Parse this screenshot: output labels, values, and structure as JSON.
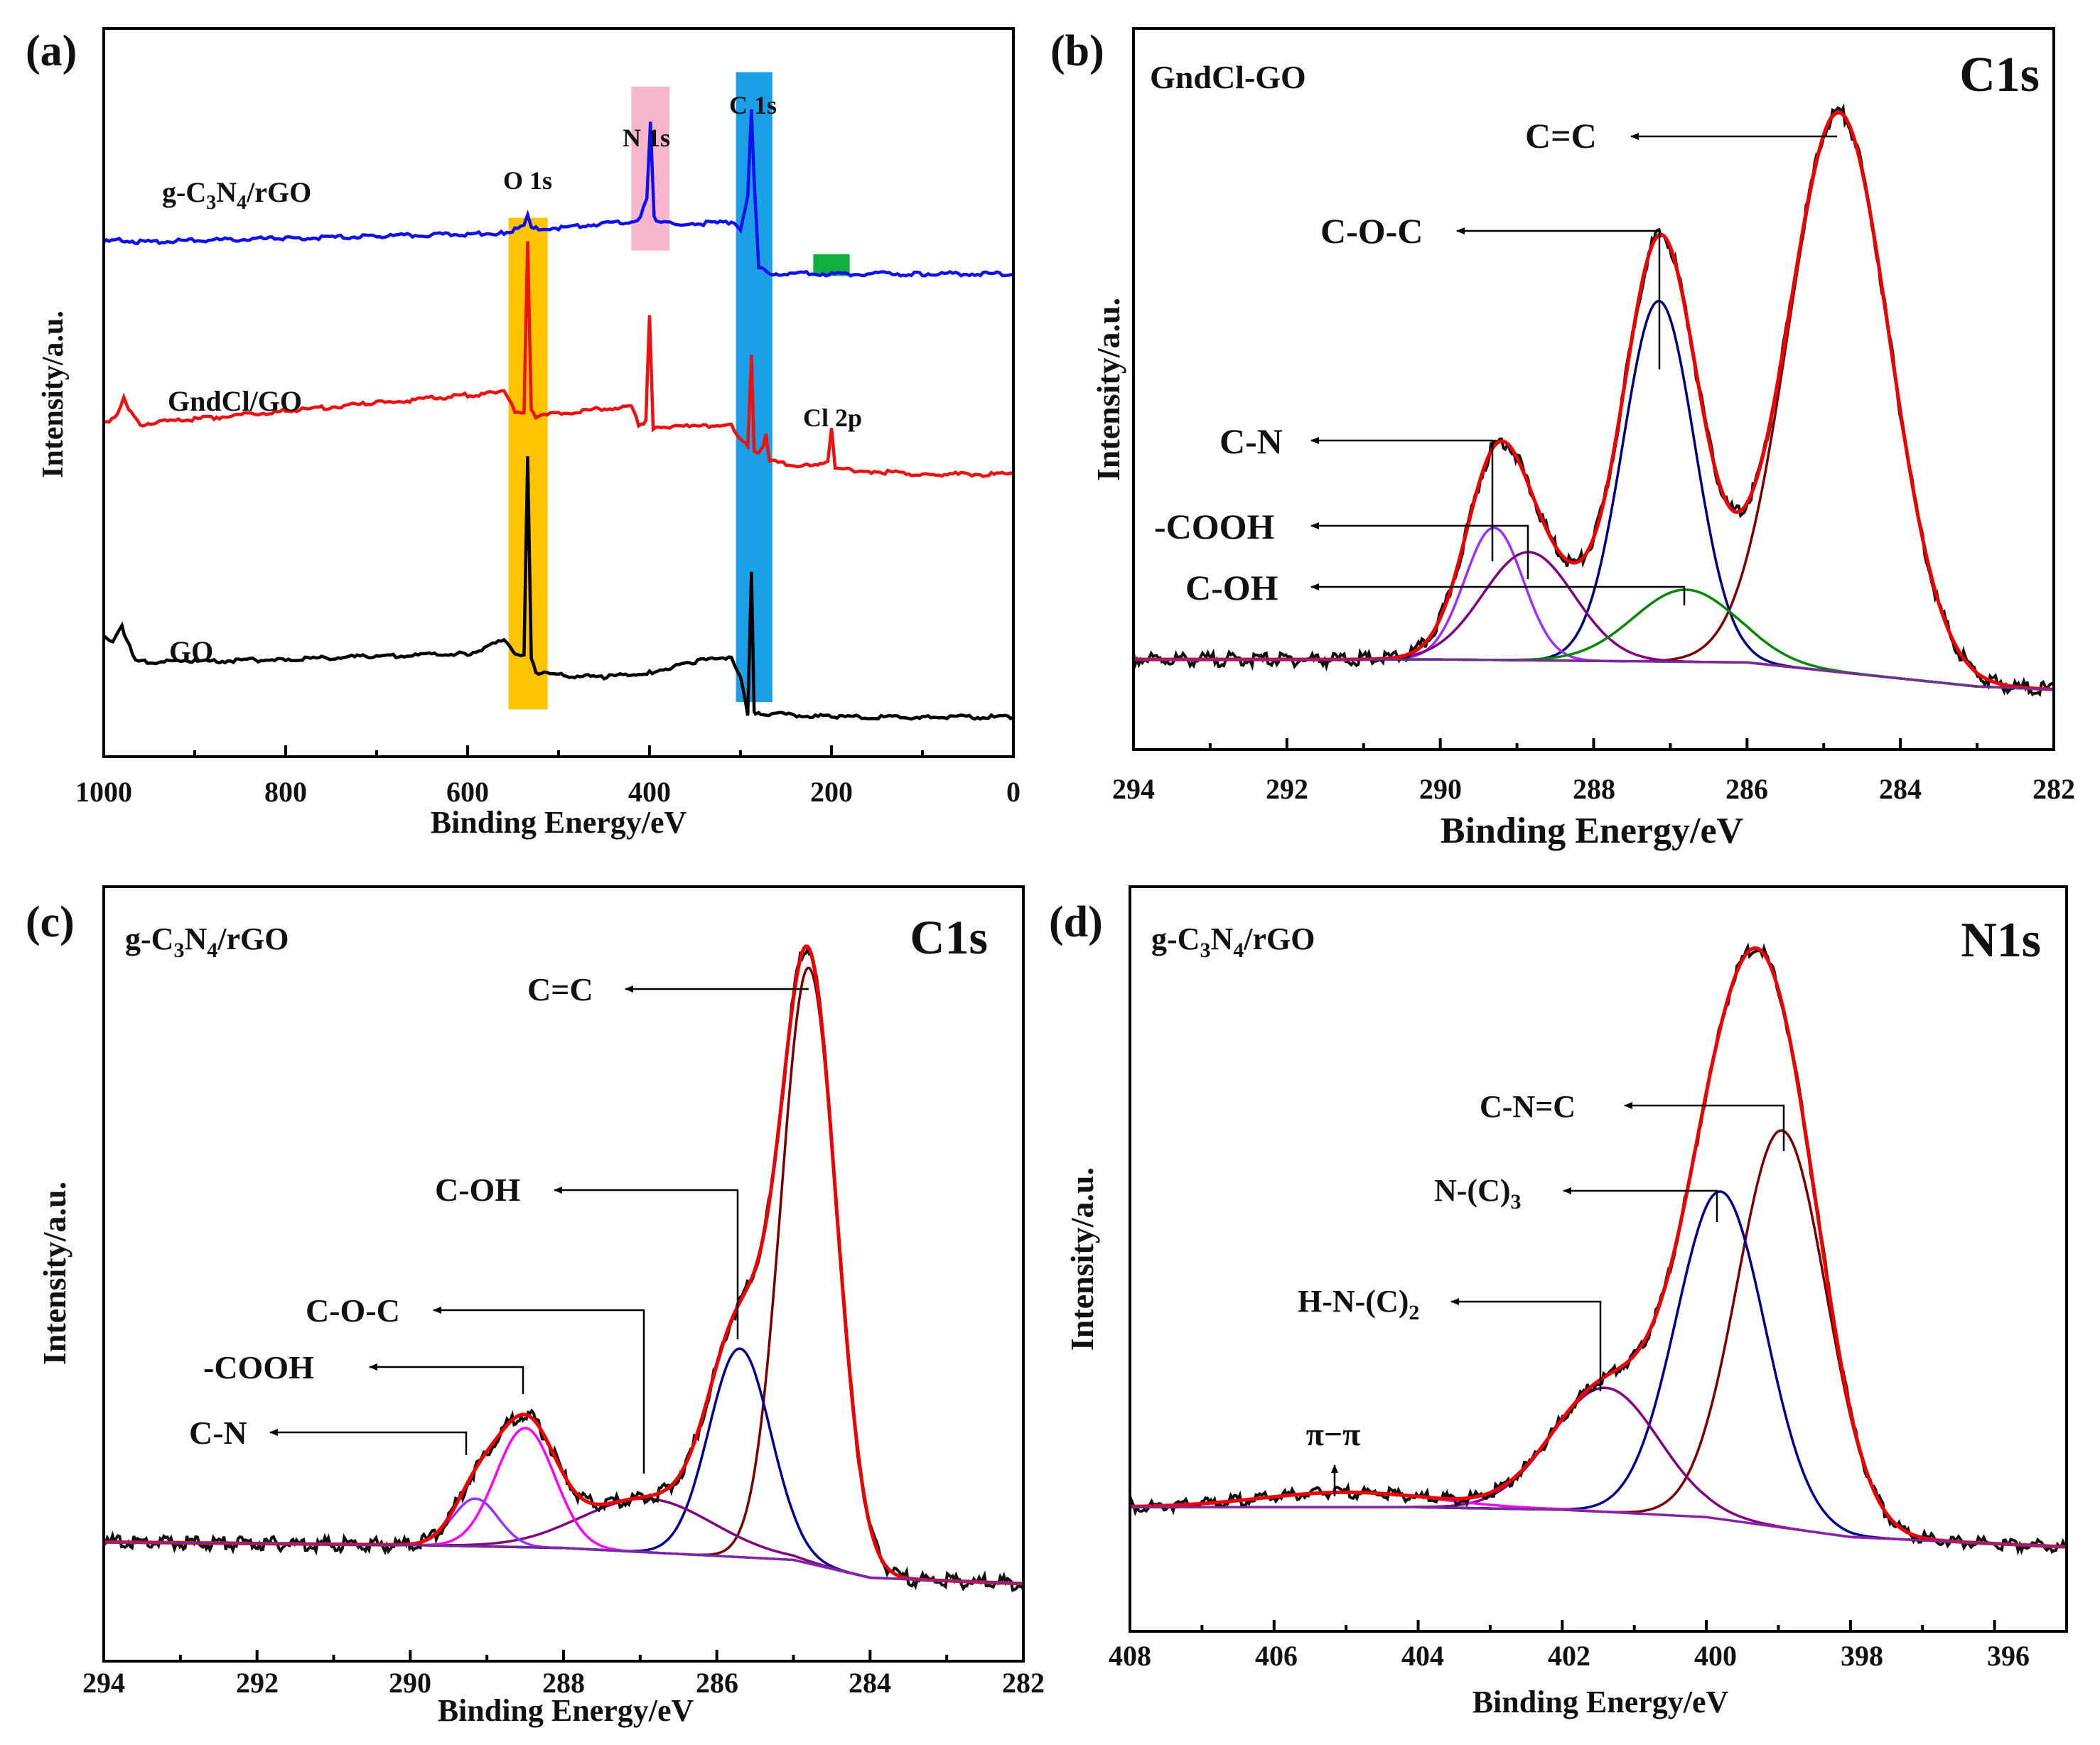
{
  "chart_data": [
    {
      "panel": "(a)",
      "type": "line",
      "xlabel": "Binding Energy/eV",
      "ylabel": "Intensity/a.u.",
      "xlim": [
        1000,
        0
      ],
      "x_ticks": [
        1000,
        800,
        600,
        400,
        200,
        0
      ],
      "series": [
        {
          "name": "g-C3N4/rGO",
          "color": "#1010ee",
          "x": [
            1000,
            980,
            960,
            900,
            800,
            700,
            600,
            560,
            545,
            538,
            534,
            530,
            525,
            500,
            420,
            410,
            403,
            399,
            395,
            390,
            350,
            310,
            300,
            292,
            288,
            285,
            280,
            270,
            200,
            100,
            0
          ],
          "y": [
            8.45,
            8.5,
            8.45,
            8.48,
            8.52,
            8.56,
            8.6,
            8.62,
            8.7,
            8.8,
            8.95,
            8.75,
            8.7,
            8.72,
            8.85,
            8.9,
            9.3,
            10.7,
            8.95,
            8.82,
            8.8,
            8.82,
            8.7,
            9.3,
            11.0,
            9.6,
            8.0,
            7.86,
            7.85,
            7.85,
            7.85
          ]
        },
        {
          "name": "GndCl/GO",
          "color": "#ee1111",
          "x": [
            1000,
            985,
            978,
            970,
            960,
            900,
            800,
            700,
            600,
            560,
            548,
            538,
            534,
            530,
            525,
            500,
            420,
            412,
            404,
            400,
            396,
            390,
            350,
            310,
            300,
            292,
            288,
            285,
            280,
            275,
            272,
            268,
            250,
            215,
            204,
            200,
            196,
            190,
            150,
            100,
            0
          ],
          "y": [
            5.0,
            5.2,
            5.5,
            5.2,
            5.0,
            5.1,
            5.25,
            5.4,
            5.55,
            5.6,
            5.25,
            5.2,
            8.5,
            5.25,
            5.15,
            5.2,
            5.35,
            5.0,
            5.05,
            7.1,
            4.9,
            4.95,
            4.95,
            5.0,
            4.7,
            4.6,
            6.3,
            4.5,
            4.45,
            4.6,
            4.8,
            4.3,
            4.25,
            4.2,
            4.3,
            4.9,
            4.2,
            4.15,
            4.1,
            4.05,
            4.05
          ]
        },
        {
          "name": "GO",
          "color": "#000000",
          "x": [
            1000,
            990,
            980,
            975,
            965,
            955,
            900,
            800,
            700,
            600,
            560,
            548,
            538,
            534,
            530,
            525,
            500,
            450,
            400,
            350,
            310,
            300,
            292,
            288,
            285,
            282,
            278,
            250,
            200,
            100,
            0
          ],
          "y": [
            1.0,
            0.85,
            1.2,
            0.9,
            0.55,
            0.5,
            0.5,
            0.55,
            0.6,
            0.65,
            0.9,
            0.65,
            0.6,
            4.4,
            0.55,
            0.3,
            0.25,
            0.2,
            0.3,
            0.5,
            0.6,
            0.2,
            -0.5,
            2.2,
            -0.45,
            -0.5,
            -0.5,
            -0.5,
            -0.55,
            -0.55,
            -0.55
          ]
        }
      ],
      "labels": [
        "g-C3N4/rGO",
        "GndCl/GO",
        "GO"
      ],
      "bands": [
        {
          "label": "O 1s",
          "from": 555,
          "to": 512,
          "color": "#ffc400"
        },
        {
          "label": "N 1s",
          "from": 420,
          "to": 378,
          "color": "#f7b6cc"
        },
        {
          "label": "C 1s",
          "from": 305,
          "to": 265,
          "color": "#1aa0e6"
        },
        {
          "label": "Cl 2p",
          "from": 220,
          "to": 180,
          "color": "#10b040"
        }
      ],
      "ylim": [
        -1.3,
        12.5
      ]
    },
    {
      "panel": "(b)",
      "type": "line",
      "sample": "GndCl-GO",
      "region": "C1s",
      "xlabel": "Binding Energy/eV",
      "ylabel": "Intensity/a.u.",
      "xlim": [
        294,
        282
      ],
      "x_ticks": [
        294,
        292,
        290,
        288,
        286,
        284,
        282
      ],
      "ylim": [
        -0.1,
        1.1
      ],
      "baseline": {
        "x": [
          294,
          290,
          286,
          283,
          282
        ],
        "y": [
          0.05,
          0.05,
          0.045,
          0.005,
          0.0
        ]
      },
      "peaks": [
        {
          "name": "C=C",
          "center": 284.8,
          "height": 0.93,
          "fwhm": 1.55,
          "color": "#7a0000"
        },
        {
          "name": "C-O-C",
          "center": 287.15,
          "height": 0.6,
          "fwhm": 1.1,
          "color": "#00007a"
        },
        {
          "name": "C-N",
          "center": 289.3,
          "height": 0.22,
          "fwhm": 0.9,
          "color": "#9b30ff"
        },
        {
          "name": "-COOH",
          "center": 288.85,
          "height": 0.18,
          "fwhm": 1.4,
          "color": "#800080"
        },
        {
          "name": "C-OH",
          "center": 286.8,
          "height": 0.12,
          "fwhm": 1.6,
          "color": "#008800"
        }
      ],
      "annotations": [
        "C=C",
        "C-O-C",
        "C-N",
        "-COOH",
        "C-OH"
      ]
    },
    {
      "panel": "(c)",
      "type": "line",
      "sample": "g-C3N4/rGO",
      "region": "C1s",
      "xlabel": "Binding Energy/eV",
      "ylabel": "Intensity/a.u.",
      "xlim": [
        294,
        282
      ],
      "x_ticks": [
        294,
        292,
        290,
        288,
        286,
        284,
        282
      ],
      "ylim": [
        -0.2,
        1.1
      ],
      "baseline": {
        "x": [
          294,
          290,
          288,
          285,
          284,
          282
        ],
        "y": [
          0.0,
          -0.005,
          -0.01,
          -0.03,
          -0.06,
          -0.07
        ]
      },
      "peaks": [
        {
          "name": "C=C",
          "center": 284.8,
          "height": 1.0,
          "fwhm": 0.85,
          "color": "#7a0000"
        },
        {
          "name": "C-OH",
          "center": 285.7,
          "height": 0.35,
          "fwhm": 0.95,
          "color": "#000090"
        },
        {
          "name": "C-O-C",
          "center": 286.9,
          "height": 0.09,
          "fwhm": 2.0,
          "color": "#800080"
        },
        {
          "name": "-COOH",
          "center": 288.5,
          "height": 0.2,
          "fwhm": 0.9,
          "color": "#ff00ff"
        },
        {
          "name": "C-N",
          "center": 289.15,
          "height": 0.08,
          "fwhm": 0.7,
          "color": "#9b30ff"
        }
      ],
      "annotations": [
        "C=C",
        "C-OH",
        "C-O-C",
        "-COOH",
        "C-N"
      ]
    },
    {
      "panel": "(d)",
      "type": "line",
      "sample": "g-C3N4/rGO",
      "region": "N1s",
      "xlabel": "Binding Energy/eV",
      "ylabel": "Intensity/a.u.",
      "xlim": [
        408,
        395
      ],
      "x_ticks": [
        408,
        406,
        404,
        402,
        400,
        398,
        396
      ],
      "ylim": [
        -0.25,
        1.25
      ],
      "baseline": {
        "x": [
          408,
          404,
          402,
          400,
          399,
          398,
          395
        ],
        "y": [
          0.0,
          0.0,
          -0.005,
          -0.02,
          -0.04,
          -0.06,
          -0.08
        ]
      },
      "peaks": [
        {
          "name": "C-N=C",
          "center": 398.95,
          "height": 0.8,
          "fwhm": 1.45,
          "color": "#7a0000"
        },
        {
          "name": "N-(C)3",
          "center": 399.8,
          "height": 0.66,
          "fwhm": 1.45,
          "color": "#000090"
        },
        {
          "name": "H-N-(C)2",
          "center": 401.4,
          "height": 0.25,
          "fwhm": 1.75,
          "color": "#800080"
        },
        {
          "name": "π−π",
          "center": 405.0,
          "height": 0.03,
          "fwhm": 2.8,
          "color": "#ff00ff"
        }
      ],
      "annotations": [
        "C-N=C",
        "N-(C)3",
        "H-N-(C)2",
        "π−π"
      ]
    }
  ],
  "panels": {
    "a": {
      "tag": "(a)",
      "ylabel": "Intensity/a.u.",
      "xlabel": "Binding Energy/eV",
      "ticks": [
        "1000",
        "800",
        "600",
        "400",
        "200",
        "0"
      ],
      "trace_labels": {
        "c3n4_main": "g-C",
        "c3n4_sub1": "3",
        "c3n4_mid": "N",
        "c3n4_sub2": "4",
        "c3n4_tail": "/rGO",
        "gndcl": "GndCl/GO",
        "go": "GO"
      },
      "band_labels": {
        "o1s": "O 1s",
        "n1s": "N 1s",
        "c1s": "C 1s",
        "cl2p": "Cl 2p"
      }
    },
    "b": {
      "tag": "(b)",
      "sample": "GndCl-GO",
      "region": "C1s",
      "ylabel": "Intensity/a.u.",
      "xlabel": "Binding Energy/eV",
      "ticks": [
        "294",
        "292",
        "290",
        "288",
        "286",
        "284",
        "282"
      ],
      "ann": {
        "cc": "C=C",
        "coc": "C-O-C",
        "cn": "C-N",
        "cooh": "-COOH",
        "coh": "C-OH"
      }
    },
    "c": {
      "tag": "(c)",
      "sample_main": "g-C",
      "sample_sub1": "3",
      "sample_mid": "N",
      "sample_sub2": "4",
      "sample_tail": "/rGO",
      "region": "C1s",
      "ylabel": "Intensity/a.u.",
      "xlabel": "Binding Energy/eV",
      "ticks": [
        "294",
        "292",
        "290",
        "288",
        "286",
        "284",
        "282"
      ],
      "ann": {
        "cc": "C=C",
        "coh": "C-OH",
        "coc": "C-O-C",
        "cooh": "-COOH",
        "cn": "C-N"
      }
    },
    "d": {
      "tag": "(d)",
      "sample_main": "g-C",
      "sample_sub1": "3",
      "sample_mid": "N",
      "sample_sub2": "4",
      "sample_tail": "/rGO",
      "region": "N1s",
      "ylabel": "Intensity/a.u.",
      "xlabel": "Binding Energy/eV",
      "ticks": [
        "408",
        "406",
        "404",
        "402",
        "400",
        "398",
        "396"
      ],
      "ann": {
        "cnc": "C-N=C",
        "nc3_main": "N-(C)",
        "nc3_sub": "3",
        "hnc2_main": "H-N-(C)",
        "hnc2_sub": "2",
        "pipi": "π−π"
      }
    }
  }
}
